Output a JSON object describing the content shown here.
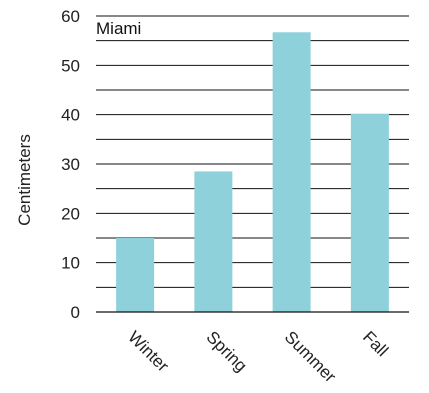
{
  "chart_data": {
    "type": "bar",
    "title": "Miami",
    "xlabel": "",
    "ylabel": "Centimeters",
    "categories": [
      "Winter",
      "Spring",
      "Summer",
      "Fall"
    ],
    "values": [
      15,
      28.5,
      56.7,
      40.2
    ],
    "ylim": [
      0,
      60
    ],
    "major_ticks": [
      0,
      10,
      20,
      30,
      40,
      50,
      60
    ],
    "minor_gridlines": [
      5,
      15,
      25,
      35,
      45,
      55
    ],
    "grid": true,
    "bar_color": "#8fd1db",
    "grid_color": "#111111"
  }
}
